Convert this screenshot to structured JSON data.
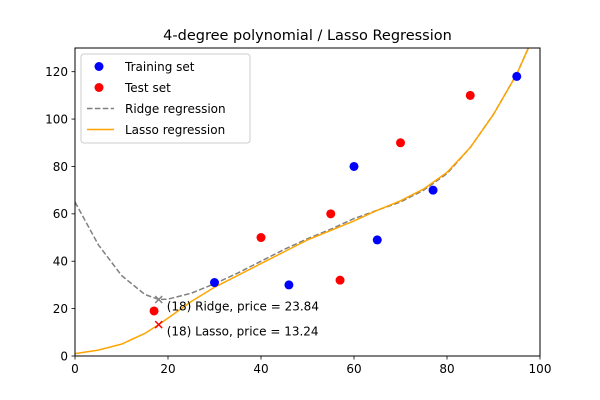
{
  "chart_data": {
    "type": "scatter",
    "title": "4-degree polynomial / Lasso Regression",
    "xlabel": "",
    "ylabel": "",
    "xlim": [
      0,
      100
    ],
    "ylim": [
      0,
      130
    ],
    "xticks": [
      0,
      20,
      40,
      60,
      80,
      100
    ],
    "yticks": [
      0,
      20,
      40,
      60,
      80,
      100,
      120
    ],
    "grid": false,
    "legend_position": "upper-left",
    "colors": {
      "training": "#0000ff",
      "test": "#ff0000",
      "ridge": "#808080",
      "lasso": "#ffa500"
    },
    "series": [
      {
        "name": "Training set",
        "kind": "scatter",
        "x": [
          30,
          46,
          60,
          65,
          77,
          95
        ],
        "y": [
          31,
          30,
          80,
          49,
          70,
          118
        ]
      },
      {
        "name": "Test set",
        "kind": "scatter",
        "x": [
          17,
          40,
          55,
          57,
          70,
          85
        ],
        "y": [
          19,
          50,
          60,
          32,
          90,
          110
        ]
      },
      {
        "name": "Ridge regression",
        "kind": "line",
        "style": "dashed",
        "x": [
          0,
          5,
          10,
          15,
          18,
          20,
          25,
          30,
          35,
          40,
          45,
          50,
          55,
          60,
          65,
          70,
          75,
          80,
          85,
          90,
          95,
          97.5
        ],
        "y": [
          65,
          47,
          34,
          26,
          23.84,
          24,
          26.5,
          30.5,
          35,
          40,
          45,
          49.5,
          53.5,
          58,
          61.5,
          65,
          70,
          77,
          88,
          102,
          119,
          130
        ]
      },
      {
        "name": "Lasso regression",
        "kind": "line",
        "style": "solid",
        "x": [
          0,
          5,
          10,
          15,
          18,
          20,
          25,
          30,
          35,
          40,
          45,
          50,
          55,
          60,
          65,
          70,
          75,
          80,
          85,
          90,
          95,
          97.5
        ],
        "y": [
          1,
          2.5,
          5,
          9.5,
          13.24,
          16,
          23,
          29,
          34,
          39,
          44,
          49,
          53,
          57,
          61.5,
          65.5,
          70.5,
          77.5,
          88,
          102,
          119,
          130
        ]
      }
    ],
    "annotations": [
      {
        "series": "Ridge regression",
        "x": 18,
        "y": 23.84,
        "text": "(18) Ridge, price = 23.84",
        "marker": "x",
        "color": "#808080"
      },
      {
        "series": "Lasso regression",
        "x": 18,
        "y": 13.24,
        "text": "(18) Lasso, price = 13.24",
        "marker": "x",
        "color": "#ff0000"
      }
    ]
  }
}
